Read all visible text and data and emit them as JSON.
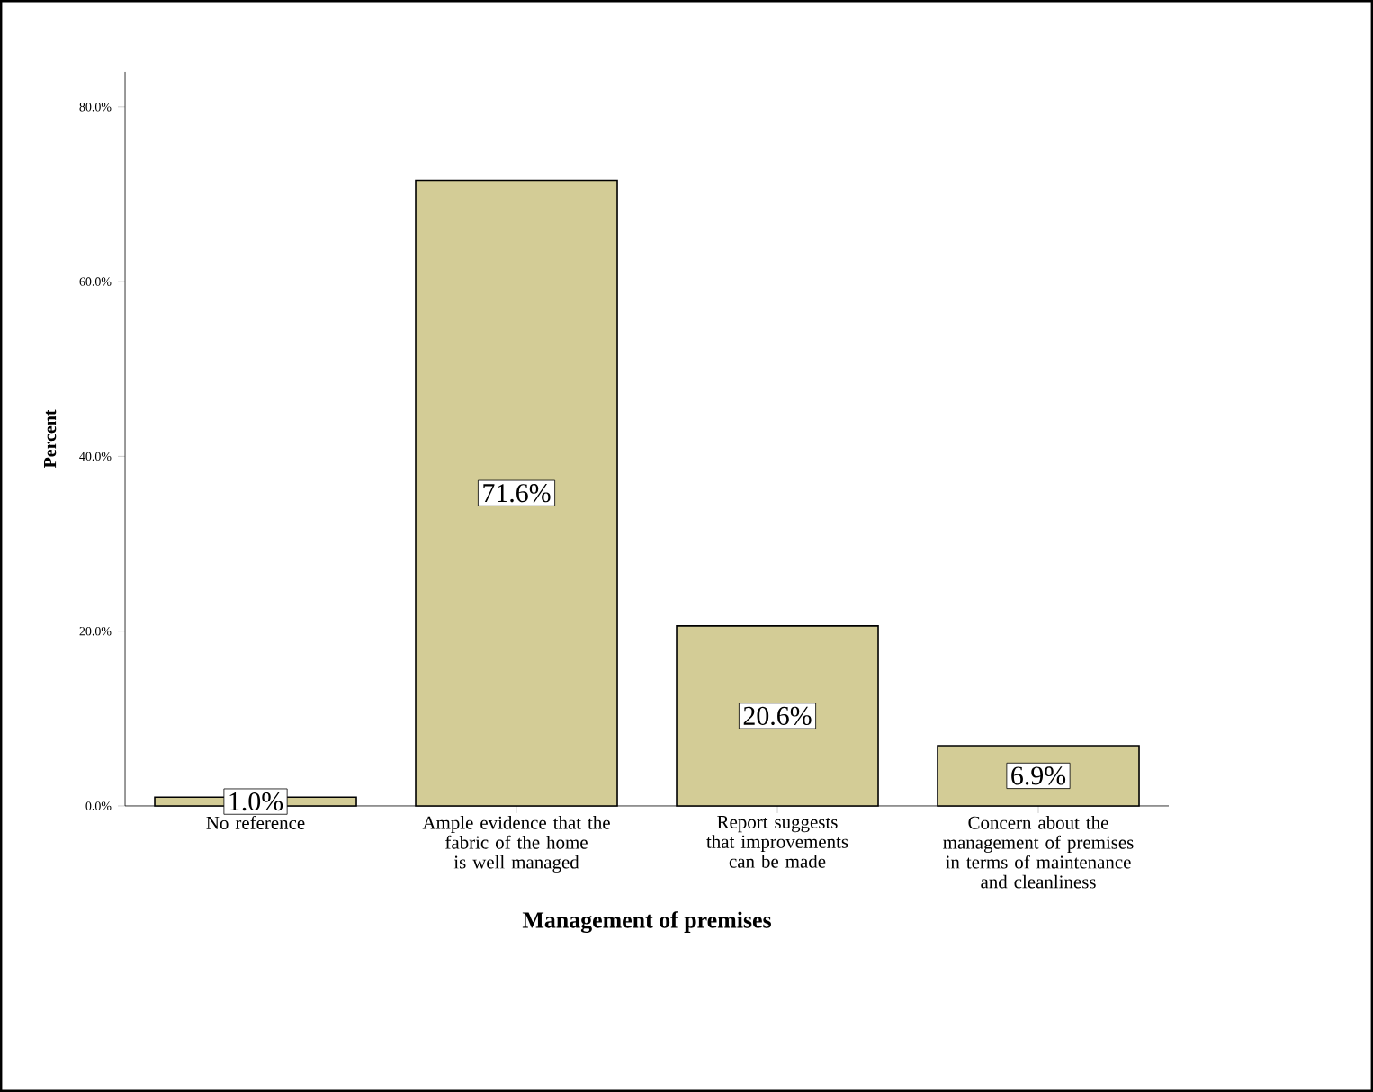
{
  "chart_data": {
    "type": "bar",
    "xlabel": "Management of premises",
    "ylabel": "Percent",
    "categories": [
      "No reference",
      "Ample evidence that the fabric of the home is well managed",
      "Report suggests that improvements can be made",
      "Concern about the management of premises in terms of maintenance and cleanliness"
    ],
    "values": [
      1.0,
      71.6,
      20.6,
      6.9
    ],
    "value_labels": [
      "1.0%",
      "71.6%",
      "20.6%",
      "6.9%"
    ],
    "color": "#d3cc96",
    "ylim": [
      0,
      84
    ],
    "yticks": [
      {
        "value": 0,
        "label": "0.0%"
      },
      {
        "value": 20,
        "label": "20.0%"
      },
      {
        "value": 40,
        "label": "40.0%"
      },
      {
        "value": 60,
        "label": "60.0%"
      },
      {
        "value": 80,
        "label": "80.0%"
      }
    ],
    "grid": false,
    "legend": false
  }
}
